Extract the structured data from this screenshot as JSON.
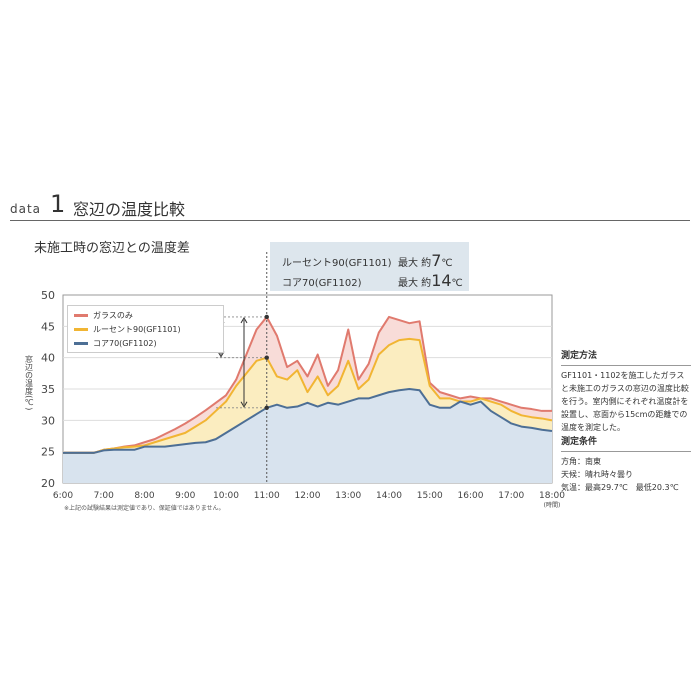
{
  "header": {
    "data_word": "data",
    "number": "1",
    "title": "窓辺の温度比較"
  },
  "subtitle": "未施工時の窓辺との温度差",
  "callout": [
    {
      "label": "ルーセント90(GF1101)",
      "prefix": "最大 約",
      "value": "7",
      "unit": "℃"
    },
    {
      "label": "コア70(GF1102)",
      "prefix": "最大 約",
      "value": "14",
      "unit": "℃"
    }
  ],
  "side": {
    "method_title": "測定方法",
    "method_text": "GF1101・1102を施工したガラスと未施工のガラスの窓辺の温度比較を行う。室内側にそれぞれ温度計を設置し、窓面から15cmの距離での温度を測定した。",
    "cond_title": "測定条件",
    "cond_lines": [
      "方角：南東",
      "天候：晴れ時々曇り",
      "気温：最高29.7℃　最低20.3℃"
    ]
  },
  "footnote": "※上記の試験結果は測定値であり、保証値ではありません。",
  "colors": {
    "glass": "#e07a6e",
    "lucent": "#f1b533",
    "core": "#4d6f95",
    "core_fill": "#d8e3ee",
    "lucent_fill": "#fbedc0",
    "glass_fill": "#f8dcd8"
  },
  "chart_data": {
    "type": "area",
    "ylabel": "窓辺の温度(℃)",
    "xlabel_unit": "(時間)",
    "ylim": [
      20,
      50
    ],
    "yticks": [
      20,
      25,
      30,
      35,
      40,
      45,
      50
    ],
    "xticks": [
      "6:00",
      "7:00",
      "8:00",
      "9:00",
      "10:00",
      "11:00",
      "12:00",
      "13:00",
      "14:00",
      "15:00",
      "16:00",
      "17:00",
      "18:00"
    ],
    "legend": [
      "ガラスのみ",
      "ルーセント90(GF1101)",
      "コア70(GF1102)"
    ],
    "x": [
      6.0,
      6.25,
      6.5,
      6.75,
      7.0,
      7.25,
      7.5,
      7.75,
      8.0,
      8.25,
      8.5,
      8.75,
      9.0,
      9.25,
      9.5,
      9.75,
      10.0,
      10.25,
      10.5,
      10.75,
      11.0,
      11.25,
      11.5,
      11.75,
      12.0,
      12.25,
      12.5,
      12.75,
      13.0,
      13.25,
      13.5,
      13.75,
      14.0,
      14.25,
      14.5,
      14.75,
      15.0,
      15.25,
      15.5,
      15.75,
      16.0,
      16.25,
      16.5,
      16.75,
      17.0,
      17.25,
      17.5,
      17.75,
      18.0
    ],
    "series": [
      {
        "name": "ガラスのみ",
        "values": [
          24.8,
          24.8,
          24.8,
          24.8,
          25.3,
          25.5,
          25.8,
          26.0,
          26.5,
          27.0,
          27.8,
          28.6,
          29.5,
          30.5,
          31.6,
          32.8,
          34.0,
          36.5,
          40.5,
          44.5,
          46.5,
          43.5,
          38.5,
          39.5,
          37.0,
          40.5,
          35.5,
          38.0,
          44.5,
          36.5,
          39.0,
          44.0,
          46.5,
          46.0,
          45.5,
          45.8,
          36.0,
          34.5,
          34.0,
          33.5,
          33.8,
          33.5,
          33.5,
          33.0,
          32.5,
          32.0,
          31.8,
          31.5,
          31.5
        ]
      },
      {
        "name": "ルーセント90(GF1101)",
        "values": [
          24.8,
          24.8,
          24.8,
          24.8,
          25.3,
          25.5,
          25.7,
          25.8,
          26.0,
          26.5,
          27.0,
          27.5,
          28.0,
          29.0,
          30.0,
          31.5,
          33.0,
          35.5,
          37.5,
          39.5,
          40.0,
          37.0,
          36.5,
          38.0,
          34.5,
          37.0,
          34.0,
          35.5,
          39.5,
          35.0,
          36.5,
          40.5,
          42.0,
          42.8,
          43.0,
          42.8,
          35.5,
          33.5,
          33.5,
          33.0,
          33.0,
          33.5,
          33.0,
          32.5,
          31.5,
          30.8,
          30.5,
          30.3,
          30.0
        ]
      },
      {
        "name": "コア70(GF1102)",
        "values": [
          24.8,
          24.8,
          24.8,
          24.8,
          25.2,
          25.3,
          25.3,
          25.3,
          25.8,
          25.8,
          25.8,
          26.0,
          26.2,
          26.4,
          26.5,
          27.0,
          28.0,
          29.0,
          30.0,
          31.0,
          32.0,
          32.5,
          32.0,
          32.2,
          32.8,
          32.2,
          32.8,
          32.5,
          33.0,
          33.5,
          33.5,
          34.0,
          34.5,
          34.8,
          35.0,
          34.8,
          32.5,
          32.0,
          32.0,
          33.0,
          32.5,
          33.0,
          31.5,
          30.5,
          29.5,
          29.0,
          28.8,
          28.5,
          28.3
        ]
      }
    ],
    "annotation_time": "11:00"
  }
}
